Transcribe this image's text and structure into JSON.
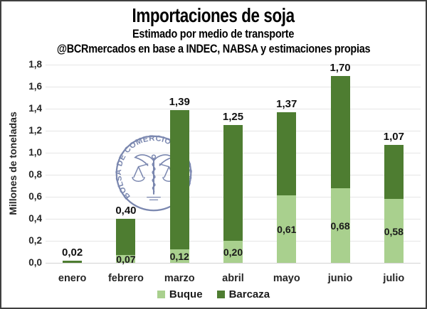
{
  "header": {
    "title": "Importaciones de soja",
    "subtitle": "Estimado por medio de transporte",
    "attribution": "@BCRmercados en base a INDEC, NABSA y estimaciones propias"
  },
  "watermark": {
    "text": "BOLSA DE COMERCIO DE ROSARIO",
    "color": "#5e6d9e"
  },
  "legend": {
    "items": [
      {
        "label": "Buque",
        "color": "#a9d08e"
      },
      {
        "label": "Barcaza",
        "color": "#4e7d31"
      }
    ]
  },
  "chart_data": {
    "type": "bar",
    "stacked": true,
    "title": "Importaciones de soja",
    "subtitle": "Estimado por medio de transporte",
    "source": "@BCRmercados en base a INDEC, NABSA y estimaciones propias",
    "categories": [
      "enero",
      "febrero",
      "marzo",
      "abril",
      "mayo",
      "junio",
      "julio"
    ],
    "series": [
      {
        "name": "Buque",
        "color": "#a9d08e",
        "values": [
          0,
          0.07,
          0.12,
          0.2,
          0.61,
          0.68,
          0.58
        ],
        "labels": [
          "",
          "0,07",
          "0,12",
          "0,20",
          "0,61",
          "0,68",
          "0,58"
        ]
      },
      {
        "name": "Barcaza",
        "color": "#4e7d31",
        "values": [
          0.02,
          0.33,
          1.27,
          1.05,
          0.76,
          1.02,
          0.49
        ]
      }
    ],
    "totals": [
      0.02,
      0.4,
      1.39,
      1.25,
      1.37,
      1.7,
      1.07
    ],
    "total_labels": [
      "0,02",
      "0,40",
      "1,39",
      "1,25",
      "1,37",
      "1,70",
      "1,07"
    ],
    "ylabel": "Millones de toneladas",
    "ylim": [
      0,
      1.8
    ],
    "ytick_step": 0.2,
    "ytick_labels": [
      "0,0",
      "0,2",
      "0,4",
      "0,6",
      "0,8",
      "1,0",
      "1,2",
      "1,4",
      "1,6",
      "1,8"
    ],
    "grid": true,
    "legend_position": "bottom"
  }
}
